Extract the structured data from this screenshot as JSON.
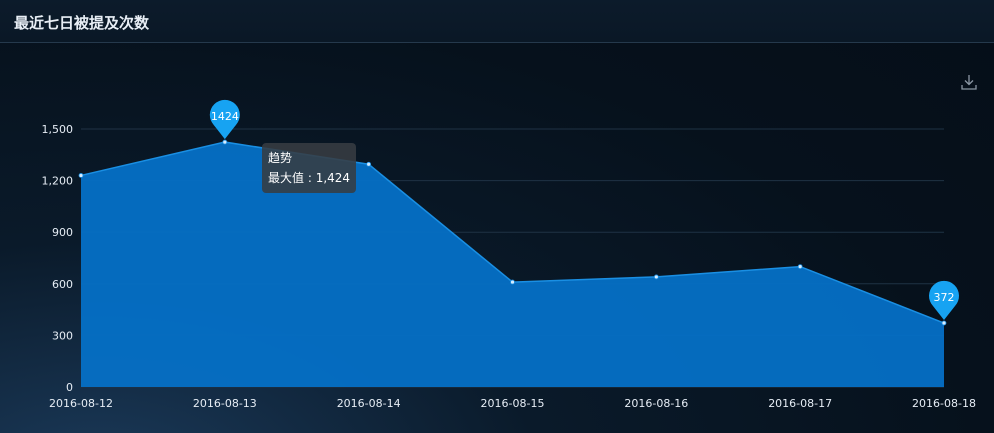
{
  "header": {
    "title": "最近七日被提及次数"
  },
  "toolbar": {
    "download_icon": "download-icon"
  },
  "tooltip": {
    "series_name": "趋势",
    "label": "最大值",
    "separator": " : ",
    "value": "1,424"
  },
  "colors": {
    "area": "#0570c6",
    "line": "#1a8fe3",
    "pin": "#17a3f2",
    "grid": "#1f3244",
    "axis": "#e6edf5"
  },
  "chart_data": {
    "type": "area",
    "title": "最近七日被提及次数",
    "xlabel": "",
    "ylabel": "",
    "x": [
      "2016-08-12",
      "2016-08-13",
      "2016-08-14",
      "2016-08-15",
      "2016-08-16",
      "2016-08-17",
      "2016-08-18"
    ],
    "series": [
      {
        "values": [
          1230,
          1424,
          1295,
          610,
          640,
          700,
          372
        ]
      }
    ],
    "ylim": [
      0,
      1500
    ],
    "yticks": [
      0,
      300,
      600,
      900,
      1200,
      1500
    ],
    "ytick_labels": [
      "0",
      "300",
      "600",
      "900",
      "1,200",
      "1,500"
    ],
    "grid": true,
    "mark_points": [
      {
        "label": "1424",
        "x": "2016-08-13",
        "value": 1424
      },
      {
        "label": "372",
        "x": "2016-08-18",
        "value": 372
      }
    ]
  }
}
